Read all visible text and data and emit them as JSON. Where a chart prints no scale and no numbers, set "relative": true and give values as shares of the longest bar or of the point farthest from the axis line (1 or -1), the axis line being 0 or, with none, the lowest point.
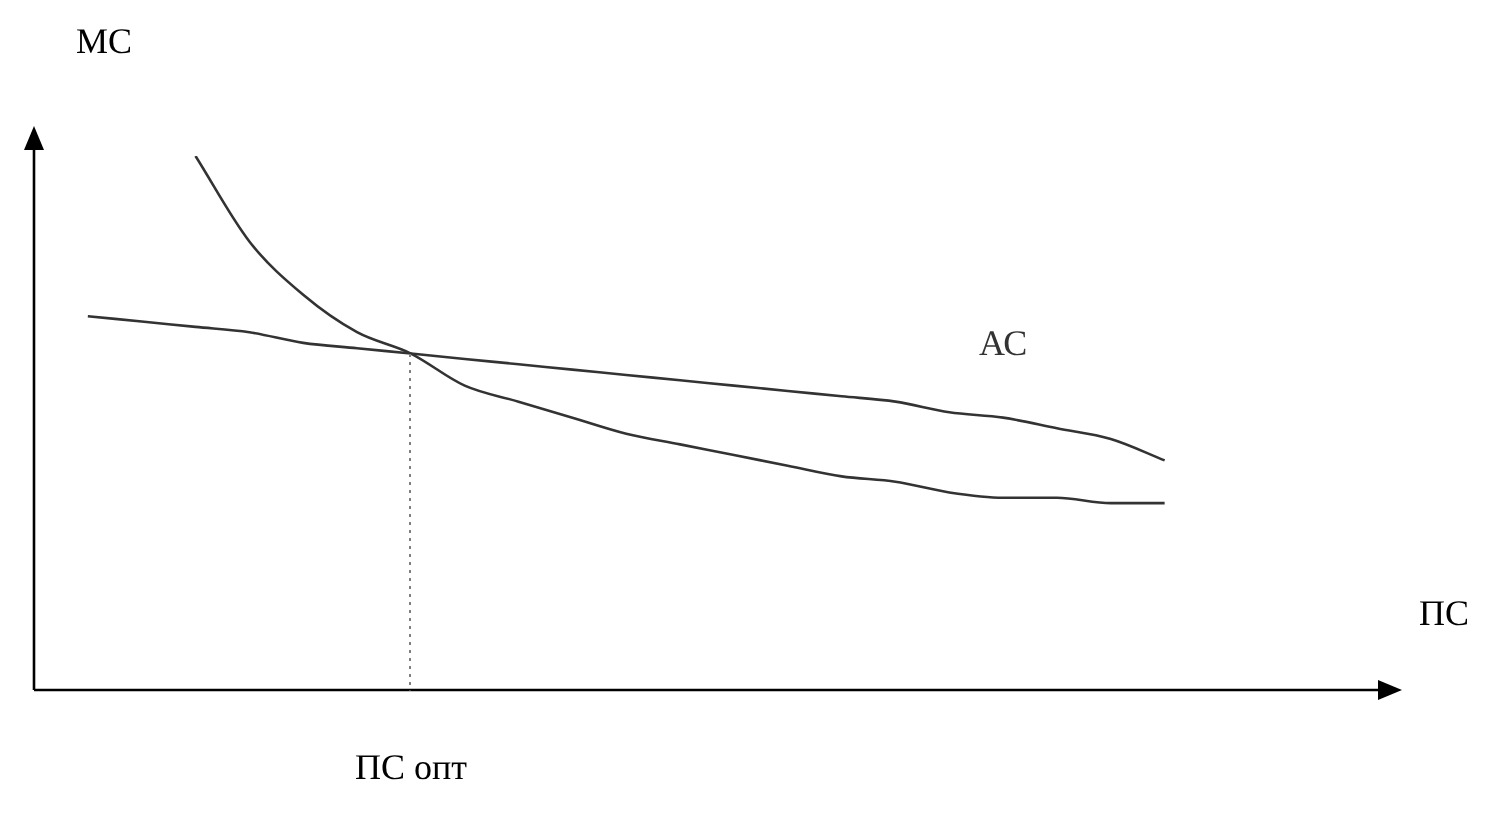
{
  "chart_data": {
    "type": "line",
    "xlabel": "ПС",
    "ylabel": "МС",
    "relative": true,
    "marker": "none",
    "annotations": [
      "ПС опт"
    ],
    "categories": [
      null,
      null,
      null,
      null,
      null,
      null,
      null,
      null,
      null,
      null,
      null,
      null,
      null,
      null,
      null,
      null,
      null,
      null,
      null,
      null,
      null,
      null,
      null,
      null,
      null,
      null
    ],
    "series": [
      {
        "color": "#333333",
        "values": [
          null,
          null,
          null,
          1.0,
          0.84,
          0.74,
          0.67,
          0.63,
          0.57,
          0.54,
          0.51,
          0.48,
          0.46,
          0.44,
          0.42,
          0.4,
          0.39,
          0.37,
          0.36,
          0.36,
          0.35,
          0.35,
          null,
          null,
          null,
          null
        ]
      },
      {
        "name": "АС",
        "color": "#333333",
        "values": [
          null,
          0.7,
          0.69,
          0.68,
          0.67,
          0.65,
          0.64,
          0.63,
          0.62,
          0.61,
          0.6,
          0.59,
          0.58,
          0.57,
          0.56,
          0.55,
          0.54,
          0.52,
          0.51,
          0.49,
          0.47,
          0.43,
          null,
          null,
          null,
          null
        ]
      }
    ]
  }
}
